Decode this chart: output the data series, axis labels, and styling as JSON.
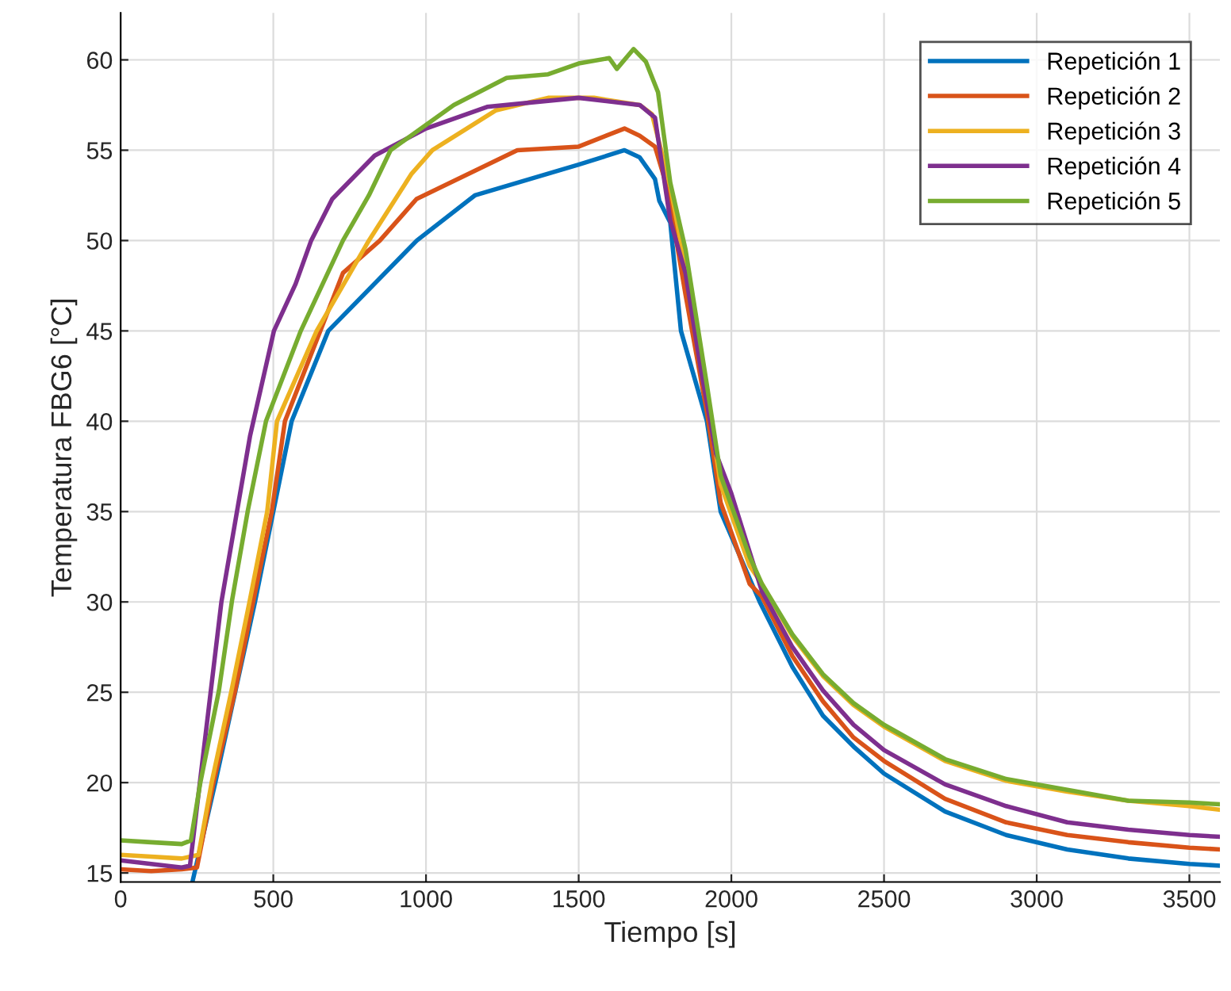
{
  "chart_data": {
    "type": "line",
    "xlabel": "Tiempo [s]",
    "ylabel": "Temperatura FBG6 [°C]",
    "xlim": [
      0,
      3600
    ],
    "ylim": [
      14.5,
      62.6
    ],
    "xticks": [
      0,
      500,
      1000,
      1500,
      2000,
      2500,
      3000,
      3500
    ],
    "yticks": [
      15,
      20,
      25,
      30,
      35,
      40,
      45,
      50,
      55,
      60
    ],
    "grid": true,
    "legend": "top right",
    "line_style": "solid",
    "marker": "none",
    "series": [
      {
        "name": "Repetición 1",
        "color": "#0072bd",
        "x": [
          235,
          310,
          375,
          440,
          500,
          560,
          680,
          970,
          1160,
          1500,
          1650,
          1700,
          1750,
          1764,
          1800,
          1835,
          1920,
          1965,
          2093,
          2200,
          2300,
          2400,
          2500,
          2700,
          2900,
          3100,
          3300,
          3500,
          3600
        ],
        "values": [
          14.5,
          20,
          25,
          30,
          35,
          40,
          45,
          50,
          52.5,
          54.2,
          55,
          54.6,
          53.4,
          52.2,
          51,
          45,
          40,
          35,
          30,
          26.4,
          23.7,
          22,
          20.5,
          18.4,
          17.1,
          16.3,
          15.8,
          15.5,
          15.4
        ]
      },
      {
        "name": "Repetición 2",
        "color": "#d95319",
        "x": [
          0,
          100,
          200,
          250,
          304,
          374,
          434,
          495,
          538,
          728,
          849,
          969,
          1299,
          1500,
          1650,
          1700,
          1750,
          1780,
          1800,
          1850,
          1920,
          1965,
          2060,
          2100,
          2200,
          2300,
          2400,
          2500,
          2700,
          2900,
          3100,
          3300,
          3500,
          3600
        ],
        "values": [
          15.2,
          15.1,
          15.2,
          15.3,
          20,
          25,
          30,
          35,
          40,
          48.2,
          50,
          52.3,
          55,
          55.2,
          56.2,
          55.8,
          55.2,
          53.5,
          52,
          47,
          40.5,
          35.5,
          31,
          30.3,
          27,
          24.5,
          22.5,
          21.2,
          19.1,
          17.8,
          17.1,
          16.7,
          16.4,
          16.3
        ]
      },
      {
        "name": "Repetición 3",
        "color": "#edb120",
        "x": [
          0,
          100,
          200,
          255,
          298,
          362,
          422,
          480,
          512,
          642,
          813,
          953,
          1021,
          1228,
          1400,
          1550,
          1700,
          1740,
          1800,
          1850,
          1920,
          1965,
          2060,
          2100,
          2200,
          2300,
          2400,
          2500,
          2700,
          2900,
          3100,
          3300,
          3500,
          3600
        ],
        "values": [
          16,
          15.9,
          15.8,
          16,
          20,
          25,
          30,
          35,
          40,
          45,
          50,
          53.7,
          55,
          57.2,
          57.9,
          57.9,
          57.5,
          57,
          53,
          48.5,
          41.5,
          36.5,
          32,
          31,
          28.1,
          25.9,
          24.3,
          23.1,
          21.2,
          20.1,
          19.5,
          19,
          18.7,
          18.5
        ]
      },
      {
        "name": "Repetición 4",
        "color": "#7e2f8e",
        "x": [
          0,
          100,
          200,
          227,
          330,
          382,
          424,
          502,
          573,
          624,
          693,
          832,
          1000,
          1200,
          1500,
          1700,
          1750,
          1800,
          1850,
          1900,
          1950,
          2000,
          2100,
          2200,
          2300,
          2400,
          2500,
          2700,
          2900,
          3100,
          3300,
          3500,
          3600
        ],
        "values": [
          15.7,
          15.5,
          15.3,
          15.4,
          30,
          35.1,
          39.2,
          45,
          47.6,
          50,
          52.3,
          54.7,
          56.2,
          57.4,
          57.9,
          57.5,
          56.8,
          51.1,
          48.2,
          42.9,
          38.2,
          36,
          30.6,
          27.5,
          25.1,
          23.2,
          21.8,
          19.9,
          18.7,
          17.8,
          17.4,
          17.1,
          17
        ]
      },
      {
        "name": "Repetición 5",
        "color": "#77ac30",
        "x": [
          0,
          100,
          200,
          230,
          261,
          322,
          365,
          417,
          476,
          590,
          728,
          813,
          884,
          1091,
          1264,
          1400,
          1500,
          1600,
          1625,
          1680,
          1720,
          1760,
          1800,
          1850,
          1920,
          1965,
          2060,
          2100,
          2200,
          2300,
          2400,
          2500,
          2700,
          2900,
          3100,
          3300,
          3500,
          3600
        ],
        "values": [
          16.8,
          16.7,
          16.6,
          16.8,
          20,
          25.1,
          30.1,
          35.1,
          40,
          45,
          50,
          52.5,
          55,
          57.5,
          59,
          59.2,
          59.8,
          60.1,
          59.5,
          60.6,
          59.9,
          58.2,
          53.2,
          49.5,
          42,
          37,
          32.5,
          31,
          28.2,
          26,
          24.4,
          23.2,
          21.3,
          20.2,
          19.6,
          19,
          18.9,
          18.8
        ]
      }
    ]
  }
}
